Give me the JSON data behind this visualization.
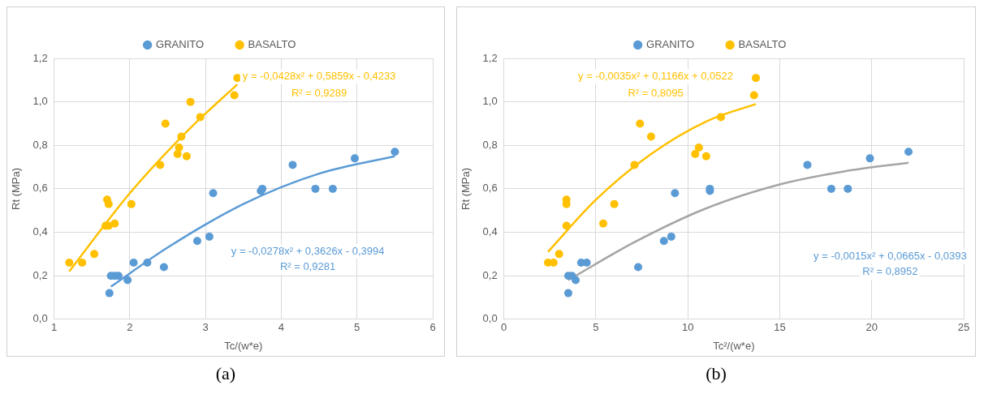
{
  "chart_data": [
    {
      "type": "scatter",
      "title": "(a)",
      "xlabel": "Tc/(w*e)",
      "ylabel": "Rt (MPa)",
      "xlim": [
        1,
        6
      ],
      "xticks": [
        1,
        2,
        3,
        4,
        5,
        6
      ],
      "ylim": [
        0,
        1.2
      ],
      "yticks": [
        {
          "value": 0,
          "label": "0,0"
        },
        {
          "value": 0.2,
          "label": "0,2"
        },
        {
          "value": 0.4,
          "label": "0,4"
        },
        {
          "value": 0.6,
          "label": "0,6"
        },
        {
          "value": 0.8,
          "label": "0,8"
        },
        {
          "value": 1.0,
          "label": "1,0"
        },
        {
          "value": 1.2,
          "label": "1,2"
        }
      ],
      "grid": true,
      "legend": "top",
      "series": [
        {
          "name": "GRANITO",
          "type": "scatter",
          "marker": "circle",
          "color": "#5b9bd5",
          "x": [
            1.73,
            1.75,
            1.8,
            1.85,
            1.97,
            2.05,
            2.23,
            2.45,
            2.89,
            3.05,
            3.1,
            3.73,
            3.75,
            4.15,
            4.45,
            4.68,
            4.97,
            5.5
          ],
          "values": [
            0.12,
            0.2,
            0.2,
            0.2,
            0.18,
            0.26,
            0.26,
            0.24,
            0.36,
            0.38,
            0.58,
            0.59,
            0.6,
            0.71,
            0.6,
            0.6,
            0.74,
            0.77
          ]
        },
        {
          "name": "BASALTO",
          "type": "scatter",
          "marker": "circle",
          "color": "#ffc000",
          "x": [
            1.2,
            1.37,
            1.53,
            1.68,
            1.72,
            1.7,
            1.72,
            1.8,
            2.02,
            2.4,
            2.47,
            2.63,
            2.65,
            2.68,
            2.75,
            2.8,
            2.93,
            3.38,
            3.42
          ],
          "values": [
            0.26,
            0.26,
            0.3,
            0.43,
            0.43,
            0.55,
            0.53,
            0.44,
            0.53,
            0.71,
            0.9,
            0.76,
            0.79,
            0.84,
            0.75,
            1.0,
            0.93,
            1.03,
            1.11
          ]
        },
        {
          "type": "line",
          "marker": "none",
          "color": "#5b9bd5",
          "x": [
            1.75,
            2.5,
            3.5,
            4.5,
            5.5
          ],
          "values": [
            0.15,
            0.33,
            0.53,
            0.67,
            0.75
          ]
        },
        {
          "type": "line",
          "marker": "none",
          "color": "#ffc000",
          "x": [
            1.2,
            2.0,
            2.8,
            3.42
          ],
          "values": [
            0.22,
            0.58,
            0.88,
            1.08
          ]
        }
      ],
      "annotations": [
        "y = -0,0278x² + 0,3626x - 0,3994",
        "R² = 0,9281",
        "y = -0,0428x² + 0,5859x - 0,4233",
        "R² = 0,9289"
      ]
    },
    {
      "type": "scatter",
      "title": "(b)",
      "xlabel": "Tc²/(w*e)",
      "ylabel": "Rt (MPa)",
      "xlim": [
        0,
        25
      ],
      "xticks": [
        0,
        5,
        10,
        15,
        20,
        25
      ],
      "ylim": [
        0,
        1.2
      ],
      "yticks": [
        {
          "value": 0,
          "label": "0,0"
        },
        {
          "value": 0.2,
          "label": "0,2"
        },
        {
          "value": 0.4,
          "label": "0,4"
        },
        {
          "value": 0.6,
          "label": "0,6"
        },
        {
          "value": 0.8,
          "label": "0,8"
        },
        {
          "value": 1.0,
          "label": "1,0"
        },
        {
          "value": 1.2,
          "label": "1,2"
        }
      ],
      "grid": true,
      "legend": "top",
      "series": [
        {
          "name": "GRANITO",
          "type": "scatter",
          "marker": "circle",
          "color": "#5b9bd5",
          "x": [
            3.5,
            3.5,
            3.7,
            3.9,
            4.2,
            4.5,
            7.3,
            8.7,
            9.1,
            9.3,
            11.2,
            11.2,
            16.5,
            17.8,
            18.7,
            19.9,
            22
          ],
          "values": [
            0.12,
            0.2,
            0.2,
            0.18,
            0.26,
            0.26,
            0.24,
            0.36,
            0.38,
            0.58,
            0.59,
            0.6,
            0.71,
            0.6,
            0.6,
            0.74,
            0.77
          ]
        },
        {
          "name": "BASALTO",
          "type": "scatter",
          "marker": "circle",
          "color": "#ffc000",
          "x": [
            2.4,
            2.7,
            3.0,
            3.4,
            3.4,
            3.4,
            5.4,
            6.0,
            7.1,
            7.4,
            8.0,
            10.4,
            10.6,
            11.0,
            11.8,
            13.6,
            13.7
          ],
          "values": [
            0.26,
            0.26,
            0.3,
            0.43,
            0.53,
            0.55,
            0.44,
            0.53,
            0.71,
            0.9,
            0.84,
            0.76,
            0.79,
            0.75,
            0.93,
            1.03,
            1.11
          ]
        },
        {
          "type": "line",
          "marker": "none",
          "color": "#a5a5a5",
          "x": [
            3.5,
            7,
            11,
            15,
            18.5,
            22
          ],
          "values": [
            0.18,
            0.35,
            0.51,
            0.62,
            0.68,
            0.72
          ]
        },
        {
          "type": "line",
          "marker": "none",
          "color": "#ffc000",
          "x": [
            2.4,
            5,
            8,
            11,
            13.7
          ],
          "values": [
            0.31,
            0.55,
            0.76,
            0.91,
            0.99
          ]
        }
      ],
      "annotations": [
        "y = -0,0015x² + 0,0665x - 0,0393",
        "R² = 0,8952",
        "y = -0,0035x² + 0,1166x + 0,0522",
        "R² = 0,8095"
      ]
    }
  ]
}
